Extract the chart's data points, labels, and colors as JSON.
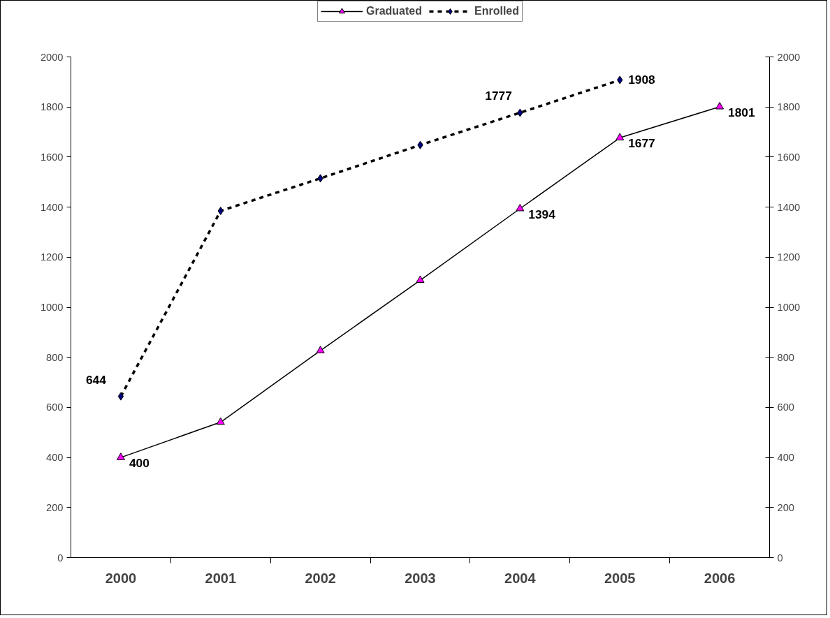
{
  "chart_data": {
    "type": "line",
    "categories": [
      "2000",
      "2001",
      "2002",
      "2003",
      "2004",
      "2005",
      "2006"
    ],
    "series": [
      {
        "name": "Graduated",
        "color": "#ff00ff",
        "marker": "triangle",
        "line_style": "solid",
        "values": [
          400,
          541,
          827,
          1108,
          1394,
          1677,
          1801
        ],
        "value_labels": [
          "400",
          null,
          null,
          null,
          "1394",
          "1677",
          "1801"
        ]
      },
      {
        "name": "Enrolled",
        "color": "#000080",
        "marker": "diamond",
        "line_style": "dashed",
        "values": [
          644,
          1385,
          1515,
          1648,
          1777,
          1908,
          null
        ],
        "value_labels": [
          "644",
          null,
          null,
          null,
          "1777",
          "1908",
          null
        ]
      }
    ],
    "ylim": [
      0,
      2000
    ],
    "yticks": [
      0,
      200,
      400,
      600,
      800,
      1000,
      1200,
      1400,
      1600,
      1800,
      2000
    ],
    "y2lim": [
      0,
      2000
    ],
    "y2ticks": [
      0,
      200,
      400,
      600,
      800,
      1000,
      1200,
      1400,
      1600,
      1800,
      2000
    ],
    "grid": false,
    "legend": "top"
  }
}
